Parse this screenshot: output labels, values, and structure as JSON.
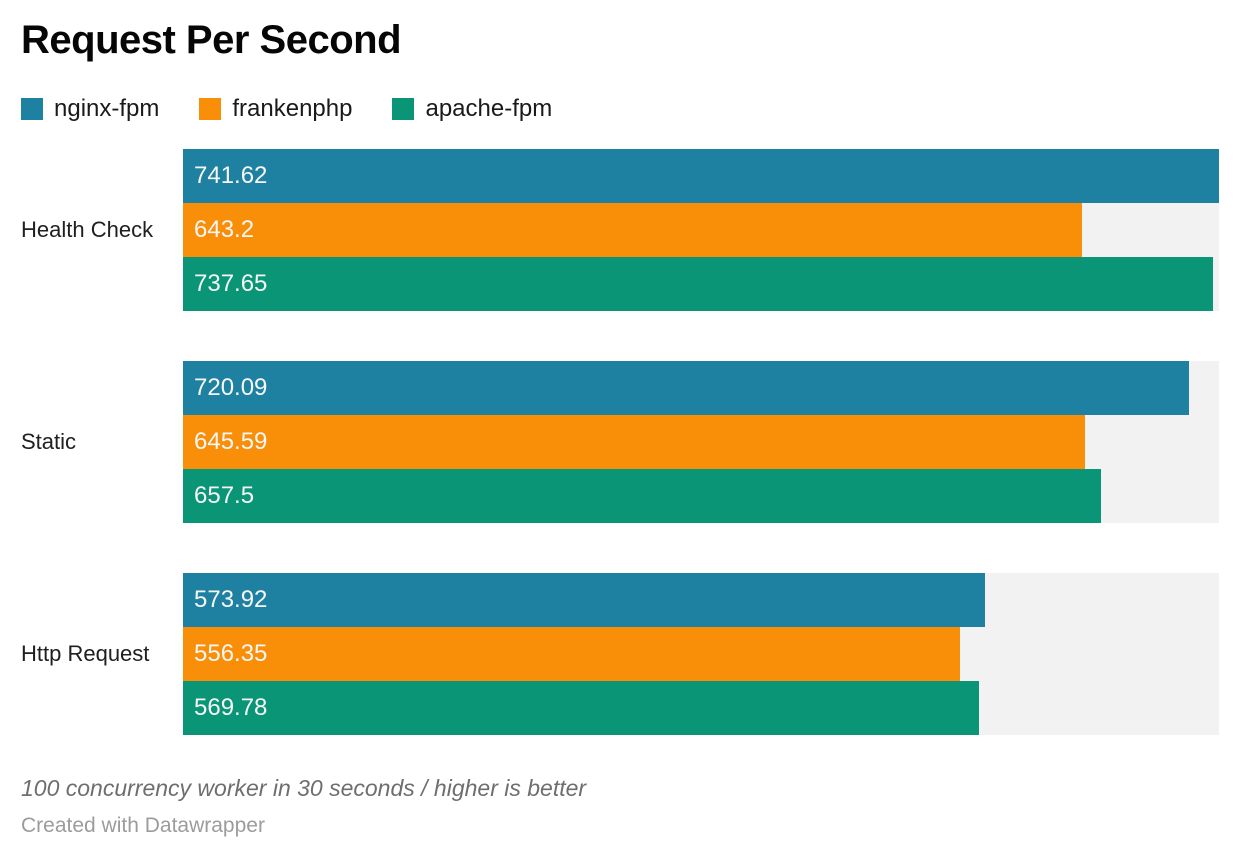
{
  "title": "Request Per Second",
  "legend": [
    {
      "label": "nginx-fpm",
      "color": "#1e81a2",
      "icon": "legend-swatch"
    },
    {
      "label": "frankenphp",
      "color": "#f98e09",
      "icon": "legend-swatch"
    },
    {
      "label": "apache-fpm",
      "color": "#0a9577",
      "icon": "legend-swatch"
    }
  ],
  "footer": {
    "note": "100 concurrency worker in 30 seconds / higher is better",
    "byline": "Created with Datawrapper"
  },
  "chart_data": {
    "type": "bar",
    "orientation": "horizontal",
    "title": "Request Per Second",
    "categories": [
      "Health Check",
      "Static",
      "Http Request"
    ],
    "series": [
      {
        "name": "nginx-fpm",
        "color": "#1e81a2",
        "values": [
          741.62,
          720.09,
          573.92
        ],
        "labels": [
          "741.62",
          "720.09",
          "573.92"
        ]
      },
      {
        "name": "frankenphp",
        "color": "#f98e09",
        "values": [
          643.2,
          645.59,
          556.35
        ],
        "labels": [
          "643.2",
          "645.59",
          "556.35"
        ]
      },
      {
        "name": "apache-fpm",
        "color": "#0a9577",
        "values": [
          737.65,
          657.5,
          569.78
        ],
        "labels": [
          "737.65",
          "657.5",
          "569.78"
        ]
      }
    ],
    "xlim": [
      0,
      741.62
    ],
    "xlabel": "",
    "ylabel": "",
    "grid": false,
    "legend_position": "top",
    "track_color": "#f2f2f2",
    "value_labels_inside": true
  }
}
